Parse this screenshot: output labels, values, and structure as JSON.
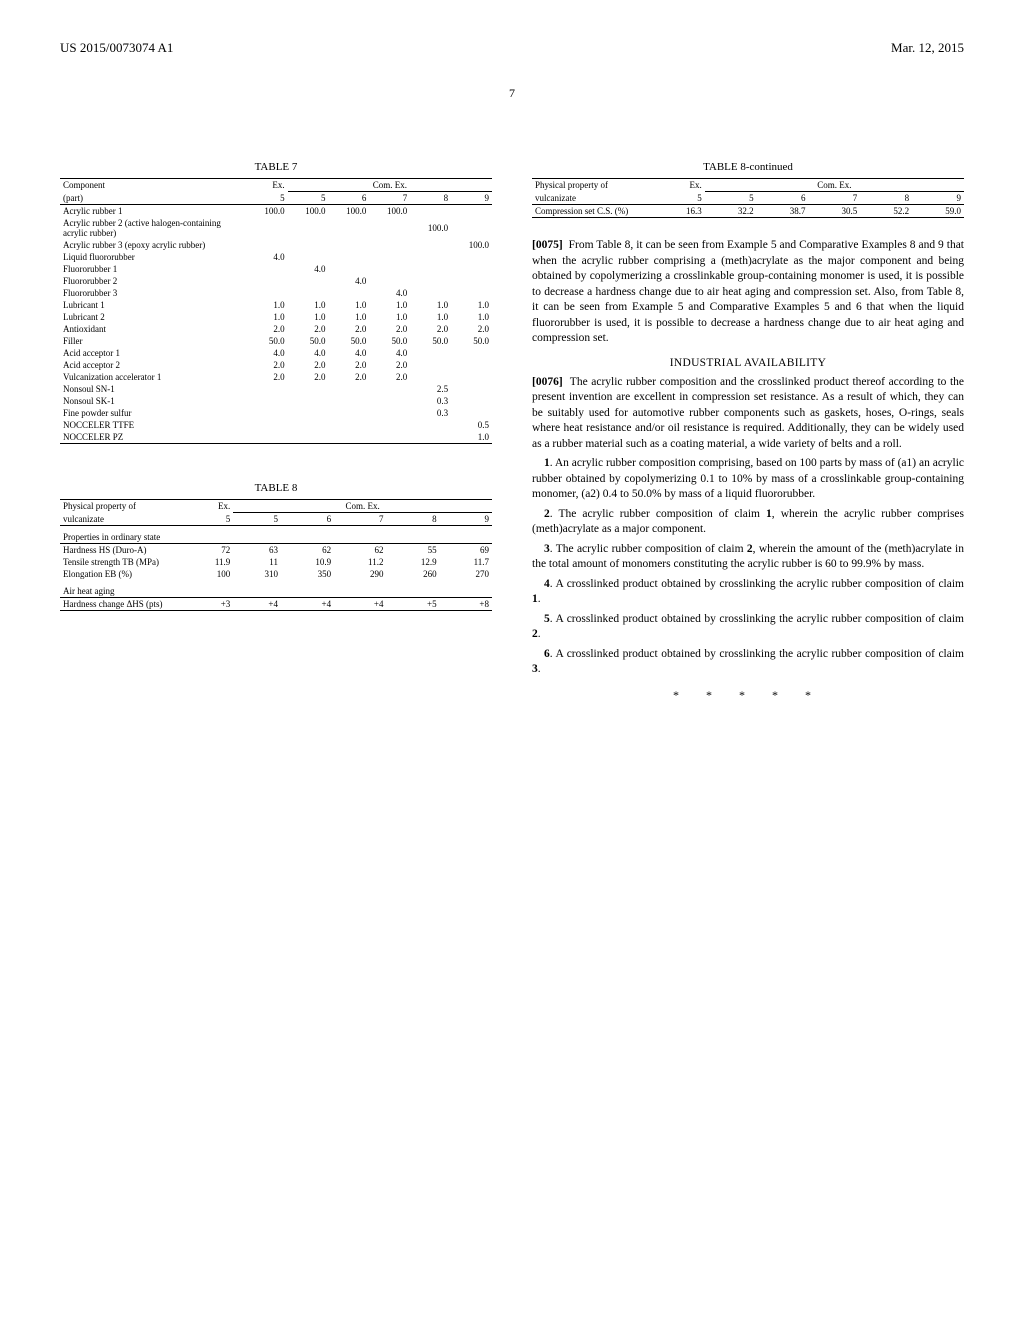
{
  "header": {
    "patent_number": "US 2015/0073074 A1",
    "date": "Mar. 12, 2015",
    "page": "7"
  },
  "table7": {
    "title": "TABLE 7",
    "col_labels": [
      "Component",
      "Ex.",
      "Com. Ex."
    ],
    "sub_labels": [
      "(part)",
      "5",
      "5",
      "6",
      "7",
      "8",
      "9"
    ],
    "rows": [
      {
        "label": "Acrylic rubber 1",
        "v": [
          "100.0",
          "100.0",
          "100.0",
          "100.0",
          "",
          ""
        ]
      },
      {
        "label": "Acrylic rubber 2 (active halogen-containing acrylic rubber)",
        "v": [
          "",
          "",
          "",
          "",
          "100.0",
          ""
        ]
      },
      {
        "label": "Acrylic rubber 3 (epoxy acrylic rubber)",
        "v": [
          "",
          "",
          "",
          "",
          "",
          "100.0"
        ]
      },
      {
        "label": "Liquid fluororubber",
        "v": [
          "4.0",
          "",
          "",
          "",
          "",
          ""
        ]
      },
      {
        "label": "Fluororubber 1",
        "v": [
          "",
          "4.0",
          "",
          "",
          "",
          ""
        ]
      },
      {
        "label": "Fluororubber 2",
        "v": [
          "",
          "",
          "4.0",
          "",
          "",
          ""
        ]
      },
      {
        "label": "Fluororubber 3",
        "v": [
          "",
          "",
          "",
          "4.0",
          "",
          ""
        ]
      },
      {
        "label": "Lubricant 1",
        "v": [
          "1.0",
          "1.0",
          "1.0",
          "1.0",
          "1.0",
          "1.0"
        ]
      },
      {
        "label": "Lubricant 2",
        "v": [
          "1.0",
          "1.0",
          "1.0",
          "1.0",
          "1.0",
          "1.0"
        ]
      },
      {
        "label": "Antioxidant",
        "v": [
          "2.0",
          "2.0",
          "2.0",
          "2.0",
          "2.0",
          "2.0"
        ]
      },
      {
        "label": "Filler",
        "v": [
          "50.0",
          "50.0",
          "50.0",
          "50.0",
          "50.0",
          "50.0"
        ]
      },
      {
        "label": "Acid acceptor 1",
        "v": [
          "4.0",
          "4.0",
          "4.0",
          "4.0",
          "",
          ""
        ]
      },
      {
        "label": "Acid acceptor 2",
        "v": [
          "2.0",
          "2.0",
          "2.0",
          "2.0",
          "",
          ""
        ]
      },
      {
        "label": "Vulcanization accelerator 1",
        "v": [
          "2.0",
          "2.0",
          "2.0",
          "2.0",
          "",
          ""
        ]
      },
      {
        "label": "Nonsoul SN-1",
        "v": [
          "",
          "",
          "",
          "",
          "2.5",
          ""
        ]
      },
      {
        "label": "Nonsoul SK-1",
        "v": [
          "",
          "",
          "",
          "",
          "0.3",
          ""
        ]
      },
      {
        "label": "Fine powder sulfur",
        "v": [
          "",
          "",
          "",
          "",
          "0.3",
          ""
        ]
      },
      {
        "label": "NOCCELER TTFE",
        "v": [
          "",
          "",
          "",
          "",
          "",
          "0.5"
        ]
      },
      {
        "label": "NOCCELER PZ",
        "v": [
          "",
          "",
          "",
          "",
          "",
          "1.0"
        ]
      }
    ]
  },
  "table8": {
    "title": "TABLE 8",
    "hdr1": "Physical property of",
    "ex": "Ex.",
    "comex": "Com. Ex.",
    "sub": [
      "vulcanizate",
      "5",
      "5",
      "6",
      "7",
      "8",
      "9"
    ],
    "sections": [
      {
        "label": "Properties in ordinary state",
        "rows": [
          {
            "label": "Hardness HS (Duro-A)",
            "v": [
              "72",
              "63",
              "62",
              "62",
              "55",
              "69"
            ]
          },
          {
            "label": "Tensile strength TB (MPa)",
            "v": [
              "11.9",
              "11",
              "10.9",
              "11.2",
              "12.9",
              "11.7"
            ]
          },
          {
            "label": "Elongation EB (%)",
            "v": [
              "100",
              "310",
              "350",
              "290",
              "260",
              "270"
            ]
          }
        ]
      },
      {
        "label": "Air heat aging",
        "rows": [
          {
            "label": "Hardness change ΔHS (pts)",
            "v": [
              "+3",
              "+4",
              "+4",
              "+4",
              "+5",
              "+8"
            ]
          }
        ]
      }
    ]
  },
  "table8cont": {
    "title": "TABLE 8-continued",
    "hdr1": "Physical property of",
    "ex": "Ex.",
    "comex": "Com. Ex.",
    "sub": [
      "vulcanizate",
      "5",
      "5",
      "6",
      "7",
      "8",
      "9"
    ],
    "rows": [
      {
        "label": "Compression set C.S. (%)",
        "v": [
          "16.3",
          "32.2",
          "38.7",
          "30.5",
          "52.2",
          "59.0"
        ]
      }
    ]
  },
  "paras": {
    "p75": "From Table 8, it can be seen from Example 5 and Comparative Examples 8 and 9 that when the acrylic rubber comprising a (meth)acrylate as the major component and being obtained by copolymerizing a crosslinkable group-containing monomer is used, it is possible to decrease a hardness change due to air heat aging and compression set. Also, from Table 8, it can be seen from Example 5 and Comparative Examples 5 and 6 that when the liquid fluororubber is used, it is possible to decrease a hardness change due to air heat aging and compression set.",
    "p75_num": "[0075]",
    "ind_head": "INDUSTRIAL AVAILABILITY",
    "p76_num": "[0076]",
    "p76": "The acrylic rubber composition and the crosslinked product thereof according to the present invention are excellent in compression set resistance. As a result of which, they can be suitably used for automotive rubber components such as gaskets, hoses, O-rings, seals where heat resistance and/or oil resistance is required. Additionally, they can be widely used as a rubber material such as a coating material, a wide variety of belts and a roll."
  },
  "claims": {
    "c1": ". An acrylic rubber composition comprising, based on 100 parts by mass of (a1) an acrylic rubber obtained by copolymerizing 0.1 to 10% by mass of a crosslinkable group-containing monomer, (a2) 0.4 to 50.0% by mass of a liquid fluororubber.",
    "c2_pre": ". The acrylic rubber composition of claim ",
    "c2_post": ", wherein the acrylic rubber comprises (meth)acrylate as a major component.",
    "c3_pre": ". The acrylic rubber composition of claim ",
    "c3_post": ", wherein the amount of the (meth)acrylate in the total amount of monomers constituting the acrylic rubber is 60 to 99.9% by mass.",
    "c4_pre": ". A crosslinked product obtained by crosslinking the acrylic rubber composition of claim ",
    "c5_pre": ". A crosslinked product obtained by crosslinking the acrylic rubber composition of claim ",
    "c6_pre": ". A crosslinked product obtained by crosslinking the acrylic rubber composition of claim ",
    "n1": "1",
    "n2": "2",
    "n3": "3",
    "n4": "4",
    "n5": "5",
    "n6": "6",
    "ref1": "1",
    "ref2": "2",
    "ref3": "3"
  },
  "stars": "*   *   *   *   *"
}
